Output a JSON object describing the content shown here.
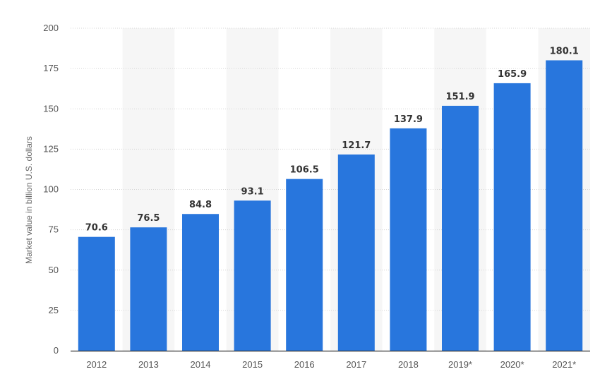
{
  "chart_data": {
    "type": "bar",
    "categories": [
      "2012",
      "2013",
      "2014",
      "2015",
      "2016",
      "2017",
      "2018",
      "2019*",
      "2020*",
      "2021*"
    ],
    "values": [
      70.6,
      76.5,
      84.8,
      93.1,
      106.5,
      121.7,
      137.9,
      151.9,
      165.9,
      180.1
    ],
    "value_labels": [
      "70.6",
      "76.5",
      "84.8",
      "93.1",
      "106.5",
      "121.7",
      "137.9",
      "151.9",
      "165.9",
      "180.1"
    ],
    "title": "",
    "xlabel": "",
    "ylabel": "Market value in billion U.S. dollars",
    "ylim": [
      0,
      200
    ],
    "yticks": [
      "0",
      "25",
      "50",
      "75",
      "100",
      "125",
      "150",
      "175",
      "200"
    ],
    "grid": true,
    "legend": "none",
    "colors": {
      "bar": "#2876dd",
      "band": "#f6f6f6",
      "grid": "#d5d5d5",
      "axis": "#333333"
    }
  }
}
